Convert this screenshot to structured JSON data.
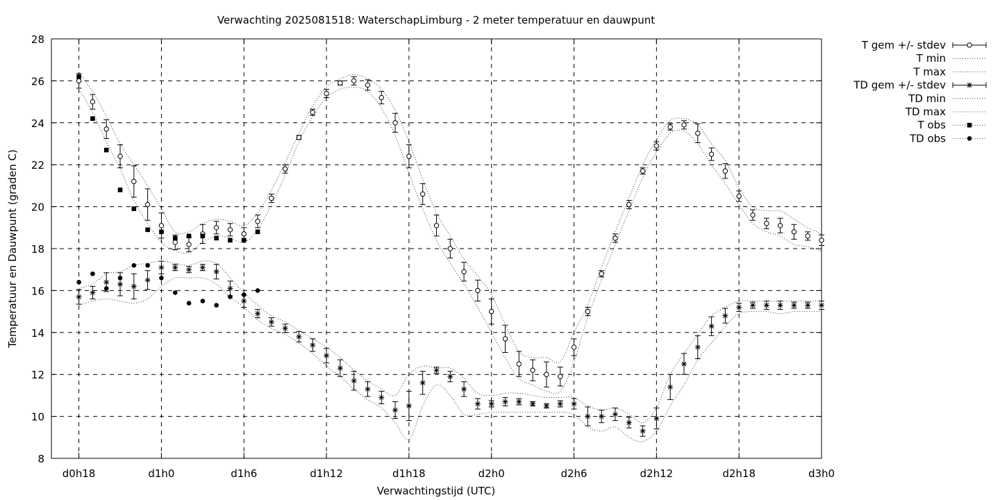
{
  "chart_data": {
    "type": "line",
    "title": "Verwachting 2025081518: WaterschapLimburg - 2 meter temperatuur en dauwpunt",
    "xlabel": "Verwachtingstijd (UTC)",
    "ylabel": "Temperatuur en Dauwpunt (graden C)",
    "x_unit": "hour",
    "x_tick_labels": [
      "d0h18",
      "d1h0",
      "d1h6",
      "d1h12",
      "d1h18",
      "d2h0",
      "d2h6",
      "d2h12",
      "d2h18",
      "d3h0"
    ],
    "x_tick_values": [
      0,
      6,
      12,
      18,
      24,
      30,
      36,
      42,
      48,
      54
    ],
    "xlim": [
      -2,
      54
    ],
    "ylim": [
      8,
      28
    ],
    "y_ticks": [
      8,
      10,
      12,
      14,
      16,
      18,
      20,
      22,
      24,
      26,
      28
    ],
    "grid": true,
    "legend_position": "outside-right",
    "x": [
      0,
      1,
      2,
      3,
      4,
      5,
      6,
      7,
      8,
      9,
      10,
      11,
      12,
      13,
      14,
      15,
      16,
      17,
      18,
      19,
      20,
      21,
      22,
      23,
      24,
      25,
      26,
      27,
      28,
      29,
      30,
      31,
      32,
      33,
      34,
      35,
      36,
      37,
      38,
      39,
      40,
      41,
      42,
      43,
      44,
      45,
      46,
      47,
      48,
      49,
      50,
      51,
      52,
      53,
      54
    ],
    "series": [
      {
        "name": "T gem +/- stdev",
        "marker": "open-circle",
        "mean": [
          26.0,
          25.0,
          23.7,
          22.4,
          21.2,
          20.1,
          19.1,
          18.3,
          18.2,
          18.7,
          19.0,
          18.9,
          18.7,
          19.3,
          20.4,
          21.8,
          23.3,
          24.5,
          25.4,
          25.9,
          26.0,
          25.8,
          25.2,
          24.0,
          22.4,
          20.6,
          19.1,
          18.0,
          16.9,
          16.0,
          15.0,
          13.7,
          12.5,
          12.2,
          12.0,
          11.9,
          13.3,
          15.0,
          16.8,
          18.5,
          20.1,
          21.7,
          22.9,
          23.8,
          23.9,
          23.5,
          22.5,
          21.7,
          20.5,
          19.6,
          19.2,
          19.1,
          18.8,
          18.6,
          18.4
        ],
        "stdev": [
          0.35,
          0.35,
          0.45,
          0.55,
          0.75,
          0.75,
          0.6,
          0.35,
          0.35,
          0.45,
          0.3,
          0.3,
          0.3,
          0.3,
          0.2,
          0.2,
          0.1,
          0.15,
          0.2,
          0.1,
          0.2,
          0.25,
          0.3,
          0.45,
          0.55,
          0.5,
          0.5,
          0.45,
          0.45,
          0.5,
          0.6,
          0.65,
          0.6,
          0.5,
          0.6,
          0.45,
          0.4,
          0.2,
          0.15,
          0.2,
          0.2,
          0.15,
          0.2,
          0.15,
          0.2,
          0.45,
          0.3,
          0.35,
          0.25,
          0.25,
          0.25,
          0.35,
          0.35,
          0.2,
          0.25
        ]
      },
      {
        "name": "T min",
        "line_style": "dotted",
        "values": [
          25.6,
          24.5,
          23.1,
          21.8,
          20.3,
          19.2,
          18.3,
          17.9,
          17.8,
          18.3,
          18.6,
          18.5,
          18.3,
          18.9,
          20.1,
          21.5,
          23.1,
          24.3,
          25.2,
          25.6,
          25.7,
          25.5,
          24.7,
          23.4,
          21.6,
          19.9,
          18.4,
          17.3,
          16.3,
          15.2,
          14.0,
          12.8,
          11.8,
          11.5,
          11.2,
          11.2,
          12.6,
          14.7,
          16.5,
          18.2,
          19.8,
          21.4,
          22.6,
          23.5,
          23.6,
          23.0,
          22.0,
          21.1,
          20.1,
          19.2,
          18.8,
          18.6,
          18.2,
          18.1,
          17.9
        ]
      },
      {
        "name": "T max",
        "line_style": "dotted",
        "values": [
          26.4,
          25.5,
          24.3,
          23.0,
          22.0,
          21.0,
          19.9,
          18.8,
          18.8,
          19.2,
          19.4,
          19.3,
          19.1,
          19.7,
          20.8,
          22.1,
          23.5,
          24.8,
          25.7,
          26.1,
          26.3,
          26.1,
          25.6,
          24.6,
          23.1,
          21.3,
          19.7,
          18.6,
          17.5,
          16.7,
          15.8,
          14.4,
          13.1,
          12.8,
          12.8,
          12.6,
          14.0,
          15.3,
          17.1,
          18.8,
          20.4,
          22.0,
          23.2,
          24.1,
          24.2,
          23.9,
          23.0,
          22.2,
          20.9,
          20.0,
          19.8,
          19.8,
          19.4,
          19.0,
          18.7
        ]
      },
      {
        "name": "TD gem +/- stdev",
        "marker": "star",
        "mean": [
          15.7,
          15.9,
          16.4,
          16.3,
          16.2,
          16.5,
          17.1,
          17.1,
          17.0,
          17.1,
          16.9,
          16.1,
          15.5,
          14.9,
          14.5,
          14.2,
          13.8,
          13.4,
          12.9,
          12.3,
          11.7,
          11.3,
          10.9,
          10.3,
          10.5,
          11.6,
          12.2,
          11.9,
          11.3,
          10.6,
          10.6,
          10.7,
          10.7,
          10.6,
          10.5,
          10.6,
          10.6,
          10.0,
          10.0,
          10.1,
          9.7,
          9.3,
          9.9,
          11.4,
          12.5,
          13.3,
          14.3,
          14.8,
          15.2,
          15.3,
          15.3,
          15.3,
          15.3,
          15.3,
          15.3
        ],
        "stdev": [
          0.35,
          0.3,
          0.45,
          0.55,
          0.6,
          0.45,
          0.3,
          0.15,
          0.15,
          0.15,
          0.35,
          0.35,
          0.3,
          0.2,
          0.2,
          0.2,
          0.25,
          0.3,
          0.35,
          0.4,
          0.45,
          0.35,
          0.3,
          0.4,
          0.7,
          0.55,
          0.15,
          0.25,
          0.35,
          0.25,
          0.15,
          0.2,
          0.15,
          0.1,
          0.1,
          0.15,
          0.25,
          0.45,
          0.3,
          0.3,
          0.25,
          0.25,
          0.5,
          0.6,
          0.5,
          0.55,
          0.45,
          0.35,
          0.2,
          0.15,
          0.2,
          0.2,
          0.15,
          0.15,
          0.2
        ]
      },
      {
        "name": "TD min",
        "line_style": "dotted",
        "values": [
          15.3,
          15.5,
          15.6,
          15.5,
          15.4,
          15.6,
          16.2,
          16.6,
          16.6,
          16.6,
          16.3,
          15.7,
          15.2,
          14.6,
          14.2,
          13.9,
          13.5,
          13.0,
          12.4,
          11.9,
          11.3,
          10.8,
          10.4,
          9.7,
          8.9,
          10.5,
          11.5,
          11.0,
          10.1,
          10.1,
          10.2,
          10.2,
          10.2,
          10.2,
          10.2,
          10.2,
          10.1,
          9.5,
          9.3,
          9.5,
          9.0,
          8.8,
          9.3,
          10.5,
          11.5,
          12.7,
          13.5,
          14.3,
          14.9,
          15.0,
          15.0,
          14.9,
          15.0,
          15.0,
          15.0
        ]
      },
      {
        "name": "TD max",
        "line_style": "dotted",
        "values": [
          16.1,
          16.3,
          16.8,
          16.9,
          17.2,
          17.3,
          17.4,
          17.3,
          17.2,
          17.4,
          17.3,
          16.6,
          15.9,
          15.3,
          14.8,
          14.5,
          14.1,
          13.7,
          13.3,
          12.8,
          12.2,
          11.7,
          11.3,
          11.0,
          12.0,
          12.4,
          12.3,
          12.3,
          11.8,
          11.1,
          11.0,
          11.1,
          11.1,
          11.0,
          10.9,
          10.9,
          10.9,
          10.5,
          10.3,
          10.4,
          10.1,
          9.7,
          10.4,
          12.0,
          13.0,
          13.9,
          14.8,
          15.2,
          15.5,
          15.5,
          15.5,
          15.5,
          15.5,
          15.5,
          15.5
        ]
      },
      {
        "name": "T obs",
        "marker": "filled-square",
        "x": [
          0,
          1,
          2,
          3,
          4,
          5,
          6,
          7,
          8,
          9,
          10,
          11,
          12,
          13
        ],
        "values": [
          26.2,
          24.2,
          22.7,
          20.8,
          19.9,
          18.9,
          18.8,
          18.5,
          18.6,
          18.6,
          18.5,
          18.4,
          18.4,
          18.8
        ]
      },
      {
        "name": "TD obs",
        "marker": "filled-circle",
        "x": [
          0,
          1,
          2,
          3,
          4,
          5,
          6,
          7,
          8,
          9,
          10,
          11,
          12,
          13
        ],
        "values": [
          16.4,
          16.8,
          16.1,
          16.6,
          17.2,
          17.2,
          16.6,
          15.9,
          15.4,
          15.5,
          15.3,
          15.7,
          15.8,
          16.0
        ]
      }
    ]
  }
}
